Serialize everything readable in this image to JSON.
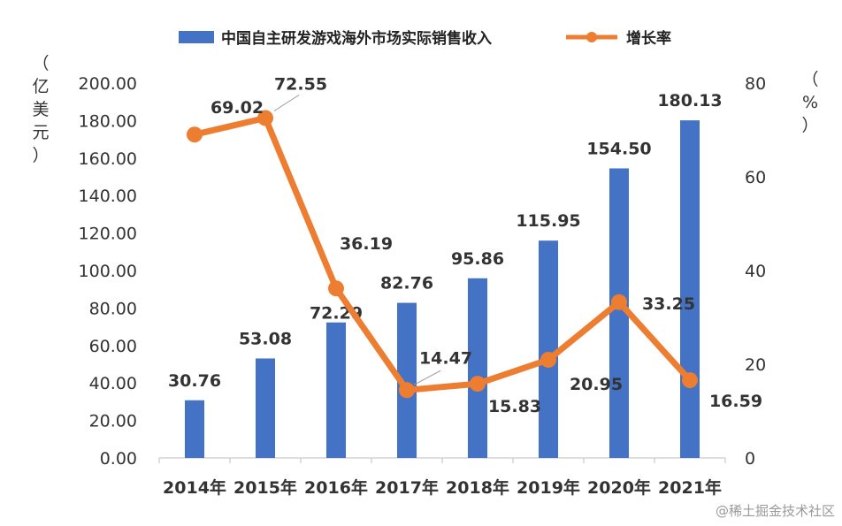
{
  "watermark": "@稀土掘金技术社区",
  "chart_data": {
    "type": "bar",
    "categories": [
      "2014年",
      "2015年",
      "2016年",
      "2017年",
      "2018年",
      "2019年",
      "2020年",
      "2021年"
    ],
    "series": [
      {
        "name": "中国自主研发游戏海外市场实际销售收入",
        "type": "bar",
        "axis": "left",
        "color": "#4472c4",
        "values": [
          30.76,
          53.08,
          72.29,
          82.76,
          95.86,
          115.95,
          154.5,
          180.13
        ],
        "labels": [
          "30.76",
          "53.08",
          "72.29",
          "82.76",
          "95.86",
          "115.95",
          "154.50",
          "180.13"
        ]
      },
      {
        "name": "增长率",
        "type": "line",
        "axis": "right",
        "color": "#ed7d31",
        "values": [
          69.02,
          72.55,
          36.19,
          14.47,
          15.83,
          20.95,
          33.25,
          16.59
        ],
        "labels": [
          "69.02",
          "72.55",
          "36.19",
          "14.47",
          "15.83",
          "20.95",
          "33.25",
          "16.59"
        ]
      }
    ],
    "ylabel": "（亿美元）",
    "ylabel_right": "（%）",
    "ylim": [
      0,
      200
    ],
    "ylim_right": [
      0,
      80
    ],
    "yticks": [
      "0.00",
      "20.00",
      "40.00",
      "60.00",
      "80.00",
      "100.00",
      "120.00",
      "140.00",
      "160.00",
      "180.00",
      "200.00"
    ],
    "yticks_right": [
      "0",
      "20",
      "40",
      "60",
      "80"
    ],
    "legend": "top",
    "grid": false
  }
}
